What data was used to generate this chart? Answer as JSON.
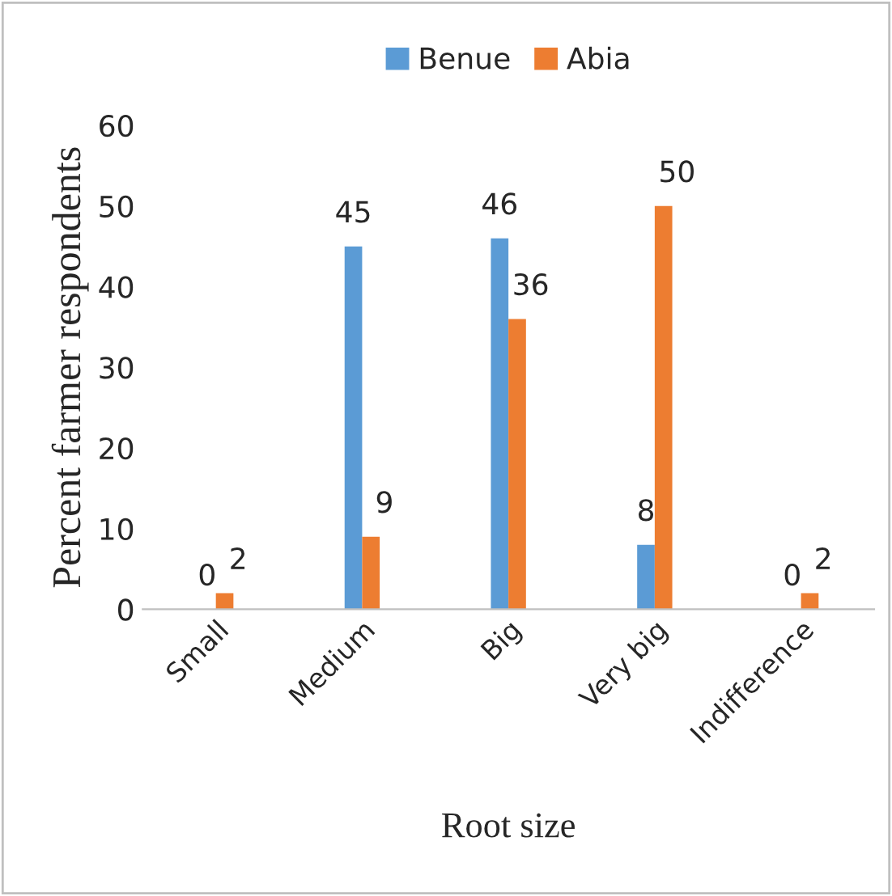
{
  "chart_data": {
    "type": "bar",
    "xlabel": "Root size",
    "ylabel": "Percent farmer respondents",
    "categories": [
      "Small",
      "Medium",
      "Big",
      "Very big",
      "Indifference"
    ],
    "series": [
      {
        "name": "Benue",
        "color": "#5b9bd5",
        "values": [
          0,
          45,
          46,
          8,
          0
        ]
      },
      {
        "name": "Abia",
        "color": "#ed7d31",
        "values": [
          2,
          9,
          36,
          50,
          2
        ]
      }
    ],
    "ylim": [
      0,
      60
    ],
    "yticks": [
      0,
      10,
      20,
      30,
      40,
      50,
      60
    ],
    "grid": false,
    "legend": "top",
    "data_labels": true
  }
}
